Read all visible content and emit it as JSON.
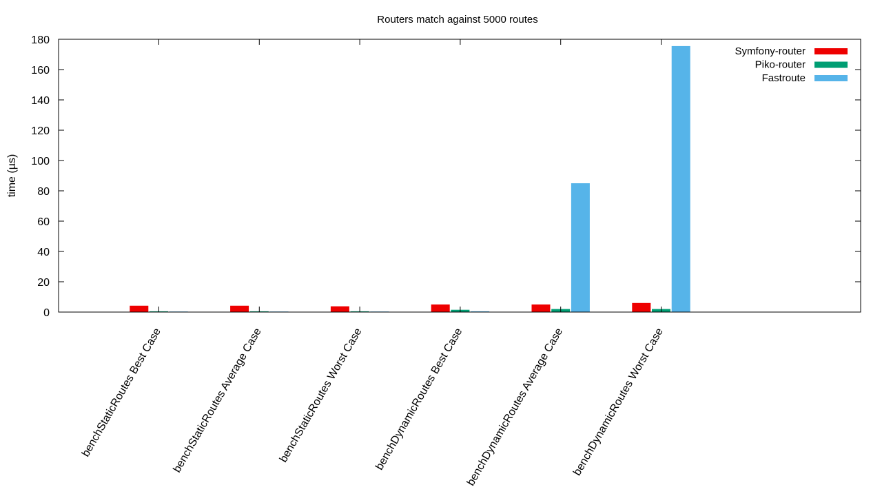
{
  "chart_data": {
    "type": "bar",
    "title": "Routers match against 5000 routes",
    "xlabel": "",
    "ylabel": "time (µs)",
    "ylim": [
      0,
      180
    ],
    "yticks": [
      0,
      20,
      40,
      60,
      80,
      100,
      120,
      140,
      160,
      180
    ],
    "grid": false,
    "legend_position": "top-right",
    "categories": [
      "benchStaticRoutes Best Case",
      "benchStaticRoutes Average Case",
      "benchStaticRoutes Worst Case",
      "benchDynamicRoutes Best Case",
      "benchDynamicRoutes Average Case",
      "benchDynamicRoutes Worst Case"
    ],
    "series": [
      {
        "name": "Symfony-router",
        "color": "#ee0000",
        "values": [
          4.2,
          4.2,
          3.8,
          5.0,
          5.0,
          6.0
        ]
      },
      {
        "name": "Piko-router",
        "color": "#009e73",
        "values": [
          0.5,
          0.5,
          0.5,
          1.5,
          2.0,
          2.0
        ]
      },
      {
        "name": "Fastroute",
        "color": "#56b4e9",
        "values": [
          0.3,
          0.3,
          0.3,
          0.5,
          85.0,
          175.5
        ]
      }
    ]
  }
}
